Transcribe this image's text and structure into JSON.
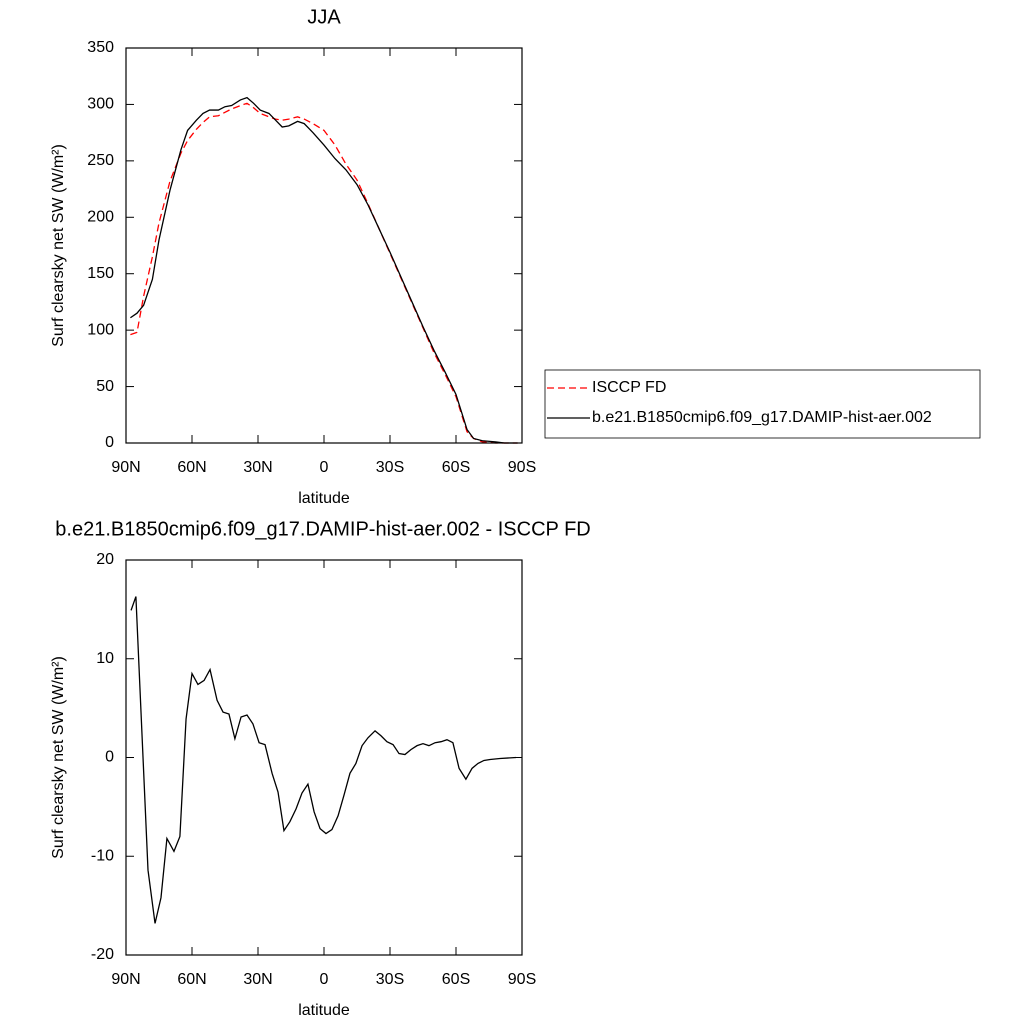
{
  "chart_data": [
    {
      "type": "line",
      "title": "JJA",
      "xlabel": "latitude",
      "ylabel": "Surf clearsky net SW (W/m²)",
      "x": [
        88,
        85,
        82,
        78,
        75,
        70,
        65,
        62,
        58,
        55,
        52,
        48,
        45,
        42,
        38,
        35,
        32,
        29,
        25,
        22,
        19,
        16,
        12,
        9,
        5,
        0,
        -5,
        -10,
        -15,
        -20,
        -25,
        -30,
        -35,
        -40,
        -45,
        -50,
        -55,
        -60,
        -65,
        -68,
        -72,
        -78,
        -82,
        -88
      ],
      "series": [
        {
          "name": "ISCCP FD",
          "color": "#ff0000",
          "linestyle": "dashed",
          "values": [
            96,
            98,
            130,
            165,
            195,
            232,
            257,
            268,
            278,
            284,
            289,
            290,
            293,
            296,
            299,
            301,
            297,
            292,
            289,
            287,
            286,
            287,
            289,
            287,
            283,
            277,
            264,
            247,
            233,
            212,
            190,
            168,
            146,
            124,
            102,
            80,
            61,
            41,
            10,
            4,
            1,
            0,
            0,
            0
          ]
        },
        {
          "name": "b.e21.B1850cmip6.f09_g17.DAMIP-hist-aer.002",
          "color": "#000000",
          "linestyle": "solid",
          "values": [
            111,
            115,
            122,
            145,
            180,
            224,
            260,
            277,
            286,
            292,
            295,
            295,
            298,
            299,
            304,
            306,
            301,
            295,
            292,
            286,
            280,
            281,
            285,
            283,
            275,
            264,
            252,
            242,
            229,
            211,
            190,
            169,
            147,
            125,
            103,
            82,
            63,
            43,
            12,
            4,
            2,
            1,
            0,
            0
          ]
        }
      ],
      "xlim": [
        90,
        -90
      ],
      "xticks": [
        {
          "value": 90,
          "label": "90N"
        },
        {
          "value": 60,
          "label": "60N"
        },
        {
          "value": 30,
          "label": "30N"
        },
        0,
        {
          "value": -30,
          "label": "30S"
        },
        {
          "value": -60,
          "label": "60S"
        },
        {
          "value": -90,
          "label": "90S"
        }
      ],
      "ylim": [
        0,
        350
      ],
      "yticks": [
        0,
        50,
        100,
        150,
        200,
        250,
        300,
        350
      ],
      "legend": "right"
    },
    {
      "type": "line",
      "title": "b.e21.B1850cmip6.f09_g17.DAMIP-hist-aer.002 - ISCCP FD",
      "xlabel": "latitude",
      "ylabel": "Surf clearsky net SW (W/m²)",
      "x": [
        87.7,
        85.5,
        80,
        76.8,
        74.1,
        71.4,
        68.2,
        65.5,
        62.7,
        60,
        57.3,
        54.5,
        51.8,
        48.6,
        45.9,
        43.2,
        40.5,
        37.7,
        35,
        32.3,
        29.5,
        26.8,
        23.6,
        20.9,
        18.2,
        15.5,
        12.7,
        10,
        7.3,
        4.5,
        1.8,
        -0.9,
        -3.6,
        -6.4,
        -9.1,
        -11.8,
        -14.5,
        -17.3,
        -20,
        -23.2,
        -25.9,
        -28.6,
        -31.4,
        -34.1,
        -36.8,
        -39.5,
        -42.3,
        -45,
        -47.7,
        -50.5,
        -53.2,
        -55.9,
        -58.6,
        -61.4,
        -64.5,
        -67.3,
        -70,
        -72.7,
        -75.5,
        -80,
        -87.3
      ],
      "series": [
        {
          "color": "#000000",
          "linestyle": "solid",
          "values": [
            14.9,
            16.3,
            -11.4,
            -16.8,
            -14.2,
            -8.2,
            -9.5,
            -8,
            3.9,
            8.5,
            7.4,
            7.8,
            8.9,
            5.8,
            4.6,
            4.4,
            1.9,
            4.1,
            4.3,
            3.4,
            1.5,
            1.3,
            -1.6,
            -3.5,
            -7.4,
            -6.5,
            -5.2,
            -3.6,
            -2.7,
            -5.5,
            -7.2,
            -7.7,
            -7.3,
            -5.9,
            -3.8,
            -1.6,
            -0.6,
            1.2,
            2.0,
            2.7,
            2.2,
            1.6,
            1.3,
            0.4,
            0.3,
            0.8,
            1.2,
            1.4,
            1.2,
            1.5,
            1.6,
            1.8,
            1.5,
            -1.1,
            -2.2,
            -1.1,
            -0.6,
            -0.3,
            -0.2,
            -0.1,
            0
          ]
        }
      ],
      "xlim": [
        90,
        -90
      ],
      "xticks": [
        {
          "value": 90,
          "label": "90N"
        },
        {
          "value": 60,
          "label": "60N"
        },
        {
          "value": 30,
          "label": "30N"
        },
        0,
        {
          "value": -30,
          "label": "30S"
        },
        {
          "value": -60,
          "label": "60S"
        },
        {
          "value": -90,
          "label": "90S"
        }
      ],
      "ylim": [
        -20,
        20
      ],
      "yticks": [
        -20,
        -10,
        0,
        10,
        20
      ]
    }
  ]
}
